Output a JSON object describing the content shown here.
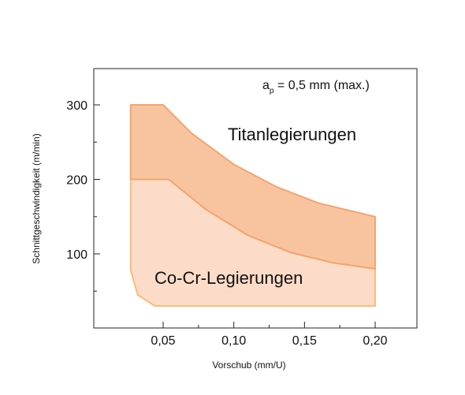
{
  "chart_data": {
    "type": "area",
    "title": "",
    "xlabel": "Vorschub (mm/U)",
    "ylabel": "Schnittgeschwindigkeit (m/min)",
    "xlim": [
      -0.0,
      0.22
    ],
    "ylim": [
      0,
      350
    ],
    "x_ticks": [
      0.05,
      0.1,
      0.15,
      0.2
    ],
    "x_tick_labels": [
      "0,05",
      "0,10",
      "0,15",
      "0,20"
    ],
    "y_ticks": [
      100,
      200,
      300
    ],
    "y_tick_labels": [
      "100",
      "200",
      "300"
    ],
    "grid": false,
    "annotation": {
      "main": "a",
      "sub": "p",
      "rest": " = 0,5 mm (max.)"
    },
    "series": [
      {
        "name": "Titanlegierungen",
        "color": "#f6a36b",
        "fill": "#f8c4a0",
        "upper": {
          "x": [
            0.027,
            0.05,
            0.07,
            0.1,
            0.13,
            0.16,
            0.2
          ],
          "y": [
            300,
            300,
            262,
            220,
            190,
            168,
            150
          ]
        },
        "lower": {
          "x": [
            0.027,
            0.054,
            0.08,
            0.11,
            0.14,
            0.17,
            0.2
          ],
          "y": [
            200,
            200,
            160,
            125,
            102,
            88,
            80
          ]
        }
      },
      {
        "name": "Co-Cr-Legierungen",
        "color": "#f9bc7a",
        "fill": "#fcdcc8",
        "upper": {
          "x": [
            0.027,
            0.054,
            0.08,
            0.11,
            0.14,
            0.17,
            0.2
          ],
          "y": [
            200,
            200,
            160,
            125,
            102,
            88,
            80
          ]
        },
        "lower": {
          "x": [
            0.027,
            0.032,
            0.044,
            0.2
          ],
          "y": [
            78,
            45,
            30,
            30
          ]
        }
      }
    ]
  }
}
